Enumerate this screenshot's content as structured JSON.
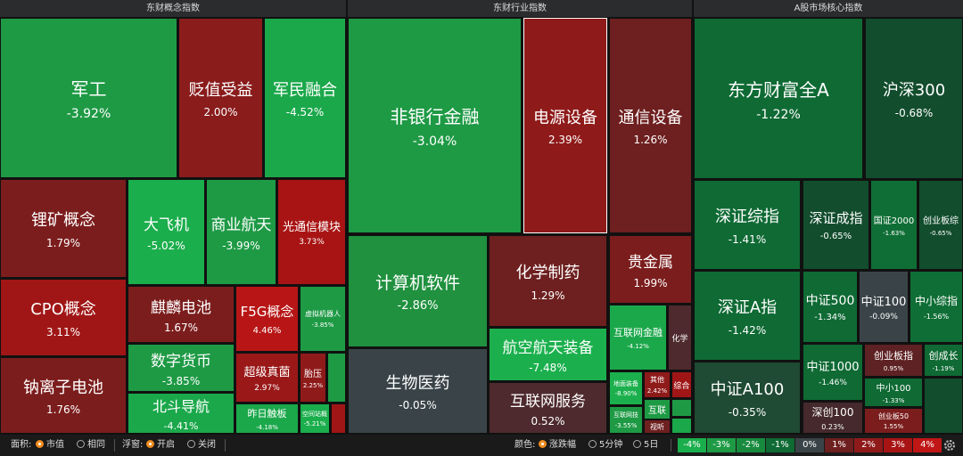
{
  "panels": [
    {
      "title": "东财概念指数",
      "tiles": [
        {
          "name": "军工",
          "change": "-3.92%",
          "color": "#1e9a45"
        },
        {
          "name": "贬值受益",
          "change": "2.00%",
          "color": "#8a1c1c"
        },
        {
          "name": "军民融合",
          "change": "-4.52%",
          "color": "#1ba84b"
        },
        {
          "name": "锂矿概念",
          "change": "1.79%",
          "color": "#7c1d1d"
        },
        {
          "name": "大飞机",
          "change": "-5.02%",
          "color": "#1bae4c"
        },
        {
          "name": "商业航天",
          "change": "-3.99%",
          "color": "#1e9a45"
        },
        {
          "name": "光通信模块",
          "change": "3.73%",
          "color": "#a81414"
        },
        {
          "name": "CPO概念",
          "change": "3.11%",
          "color": "#a01616"
        },
        {
          "name": "钠离子电池",
          "change": "1.76%",
          "color": "#7c1d1d"
        },
        {
          "name": "麒麟电池",
          "change": "1.67%",
          "color": "#7c1d1d"
        },
        {
          "name": "数字货币",
          "change": "-3.85%",
          "color": "#1e9a45"
        },
        {
          "name": "北斗导航",
          "change": "-4.41%",
          "color": "#1ba84b"
        },
        {
          "name": "F5G概念",
          "change": "4.46%",
          "color": "#b81616"
        },
        {
          "name": "虚拟机器人",
          "change": "-3.85%",
          "color": "#1e9a45"
        },
        {
          "name": "超级真菌",
          "change": "2.97%",
          "color": "#9a1818"
        },
        {
          "name": "胎压",
          "change": "2.25%",
          "color": "#8f1a1a"
        },
        {
          "color": "#1e9a45"
        },
        {
          "name": "昨日触板",
          "change": "-4.18%",
          "color": "#1ba84b"
        },
        {
          "name": "空间站概",
          "change": "-5.21%",
          "color": "#1bae4c"
        },
        {
          "color": "#a01616"
        }
      ]
    },
    {
      "title": "东财行业指数",
      "tiles": [
        {
          "name": "非银行金融",
          "change": "-3.04%",
          "color": "#1e9a45"
        },
        {
          "name": "电源设备",
          "change": "2.39%",
          "color": "#8f1a1a",
          "selected": true
        },
        {
          "name": "通信设备",
          "change": "1.26%",
          "color": "#6e1f1f"
        },
        {
          "name": "计算机软件",
          "change": "-2.86%",
          "color": "#20913f"
        },
        {
          "name": "生物医药",
          "change": "-0.05%",
          "color": "#3a4448"
        },
        {
          "name": "化学制药",
          "change": "1.29%",
          "color": "#6e1f1f"
        },
        {
          "name": "航空航天装备",
          "change": "-7.48%",
          "color": "#1bb04d"
        },
        {
          "name": "互联网服务",
          "change": "0.52%",
          "color": "#4e2a2e"
        },
        {
          "name": "贵金属",
          "change": "1.99%",
          "color": "#7c1d1d"
        },
        {
          "name": "互联网金融",
          "change": "-4.12%",
          "color": "#1ba84b"
        },
        {
          "name": "化学",
          "color": "#4e2a2e"
        },
        {
          "name": "地面装备",
          "change": "-8.90%",
          "color": "#1bb04d"
        },
        {
          "name": "其他",
          "change": "2.42%",
          "color": "#8f1a1a"
        },
        {
          "name": "综合",
          "color": "#a01616"
        },
        {
          "name": "互联网技",
          "change": "-3.55%",
          "color": "#1e9a45"
        },
        {
          "name": "互联",
          "color": "#1e9a45"
        },
        {
          "name": "视听",
          "color": "#6e1f1f"
        },
        {
          "color": "#1e9a45"
        },
        {
          "color": "#1ba84b"
        }
      ]
    },
    {
      "title": "A股市场核心指数",
      "tiles": [
        {
          "name": "东方财富全A",
          "change": "-1.22%",
          "color": "#0f6a34"
        },
        {
          "name": "沪深300",
          "change": "-0.68%",
          "color": "#124d2d"
        },
        {
          "name": "深证综指",
          "change": "-1.41%",
          "color": "#0f6a34"
        },
        {
          "name": "深证成指",
          "change": "-0.65%",
          "color": "#124d2d"
        },
        {
          "name": "国证2000",
          "change": "-1.63%",
          "color": "#0f6e35"
        },
        {
          "name": "创业板综",
          "change": "-0.65%",
          "color": "#124d2d"
        },
        {
          "name": "深证A指",
          "change": "-1.42%",
          "color": "#0f6a34"
        },
        {
          "name": "中证A100",
          "change": "-0.35%",
          "color": "#1f4a33"
        },
        {
          "name": "中证500",
          "change": "-1.34%",
          "color": "#0f6a34"
        },
        {
          "name": "中证100",
          "change": "-0.09%",
          "color": "#3a4448"
        },
        {
          "name": "中小综指",
          "change": "-1.56%",
          "color": "#0f6e35"
        },
        {
          "name": "中证1000",
          "change": "-1.46%",
          "color": "#0f6a34"
        },
        {
          "name": "深创100",
          "change": "0.23%",
          "color": "#45292c"
        },
        {
          "name": "创业板指",
          "change": "0.95%",
          "color": "#5e2224"
        },
        {
          "name": "创成长",
          "change": "-1.19%",
          "color": "#0f6a34"
        },
        {
          "name": "中小100",
          "change": "-1.33%",
          "color": "#0f6a34"
        },
        {
          "name": "创业板50",
          "change": "1.55%",
          "color": "#7c1d1d"
        },
        {
          "color": "#124d2d"
        }
      ]
    }
  ],
  "toolbar": {
    "area_label": "面积:",
    "area_options": [
      "市值",
      "相同"
    ],
    "popup_label": "浮窗:",
    "popup_options": [
      "开启",
      "关闭"
    ],
    "color_label": "颜色:",
    "color_options": [
      "涨跌幅",
      "5分钟",
      "5日"
    ],
    "legend": [
      {
        "label": "-4%",
        "color": "#1bae4c"
      },
      {
        "label": "-3%",
        "color": "#1e9a45"
      },
      {
        "label": "-2%",
        "color": "#188a3e"
      },
      {
        "label": "-1%",
        "color": "#0f6a34"
      },
      {
        "label": "0%",
        "color": "#3a4448"
      },
      {
        "label": "1%",
        "color": "#6e1f1f"
      },
      {
        "label": "2%",
        "color": "#8f1a1a"
      },
      {
        "label": "3%",
        "color": "#a81414"
      },
      {
        "label": "4%",
        "color": "#c01616"
      }
    ]
  }
}
